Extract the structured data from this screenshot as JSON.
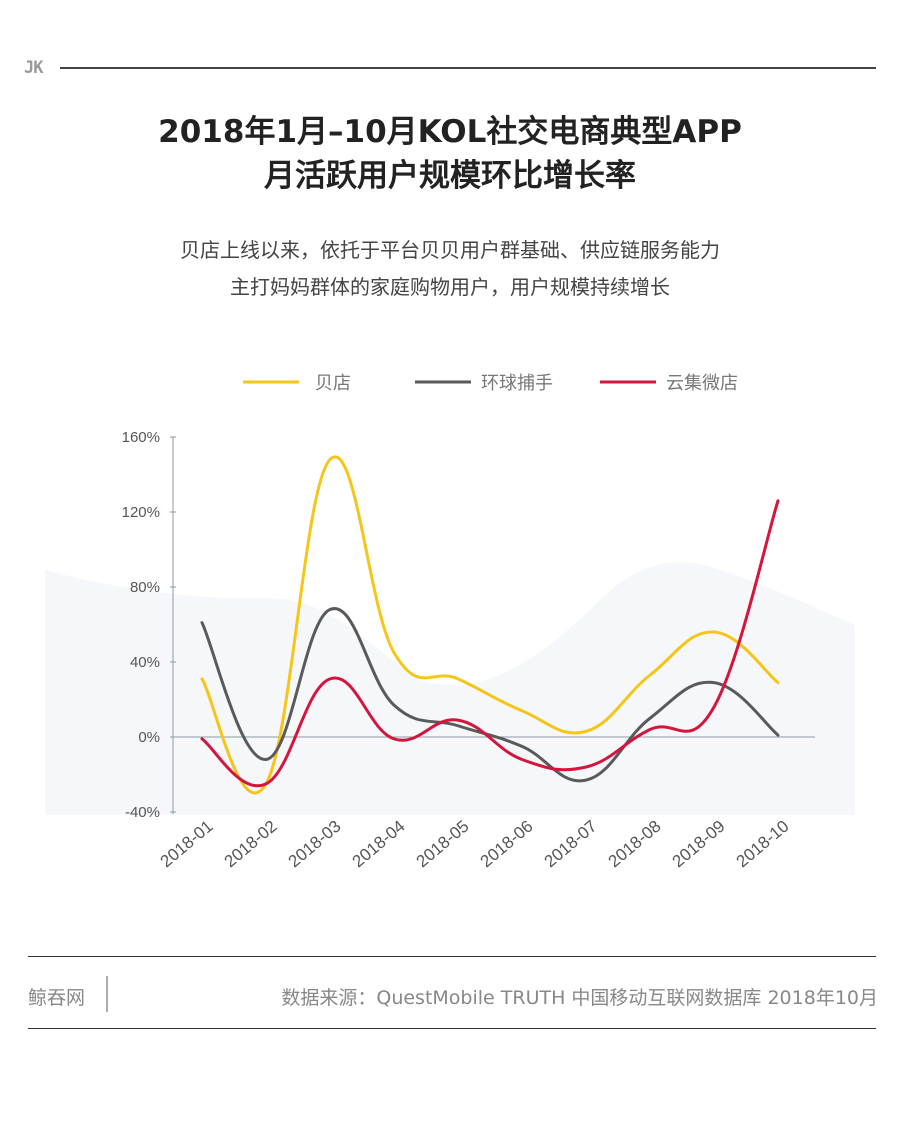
{
  "header": {
    "logo": "JK"
  },
  "title": {
    "line1": "2018年1月–10月KOL社交电商典型APP",
    "line2": "月活跃用户规模环比增长率"
  },
  "subtitle": {
    "line1": "贝店上线以来，依托于平台贝贝用户群基础、供应链服务能力",
    "line2": "主打妈妈群体的家庭购物用户，用户规模持续增长"
  },
  "footer": {
    "brand": "鲸吞网",
    "source": "数据来源：QuestMobile TRUTH 中国移动互联网数据库 2018年10月"
  },
  "chart_data": {
    "type": "line",
    "title": "",
    "xlabel": "",
    "ylabel": "",
    "categories": [
      "2018-01",
      "2018-02",
      "2018-03",
      "2018-04",
      "2018-05",
      "2018-06",
      "2018-07",
      "2018-08",
      "2018-09",
      "2018-10"
    ],
    "ylim": [
      -40,
      160
    ],
    "yticks": [
      160,
      120,
      80,
      40,
      0,
      -40
    ],
    "ytick_labels": [
      "160%",
      "120%",
      "80%",
      "40%",
      "0%",
      "-40%"
    ],
    "legend_position": "top",
    "series": [
      {
        "name": "贝店",
        "color": "#f5c518",
        "values": [
          31,
          -25,
          148,
          45,
          31,
          14,
          3,
          33,
          56,
          29
        ]
      },
      {
        "name": "环球捕手",
        "color": "#5a5a5a",
        "values": [
          61,
          -12,
          68,
          17,
          6,
          -5,
          -23,
          10,
          29,
          1
        ]
      },
      {
        "name": "云集微店",
        "color": "#d4163c",
        "values": [
          -1,
          -25,
          31,
          -1,
          9,
          -12,
          -16,
          4,
          16,
          126
        ]
      }
    ]
  }
}
